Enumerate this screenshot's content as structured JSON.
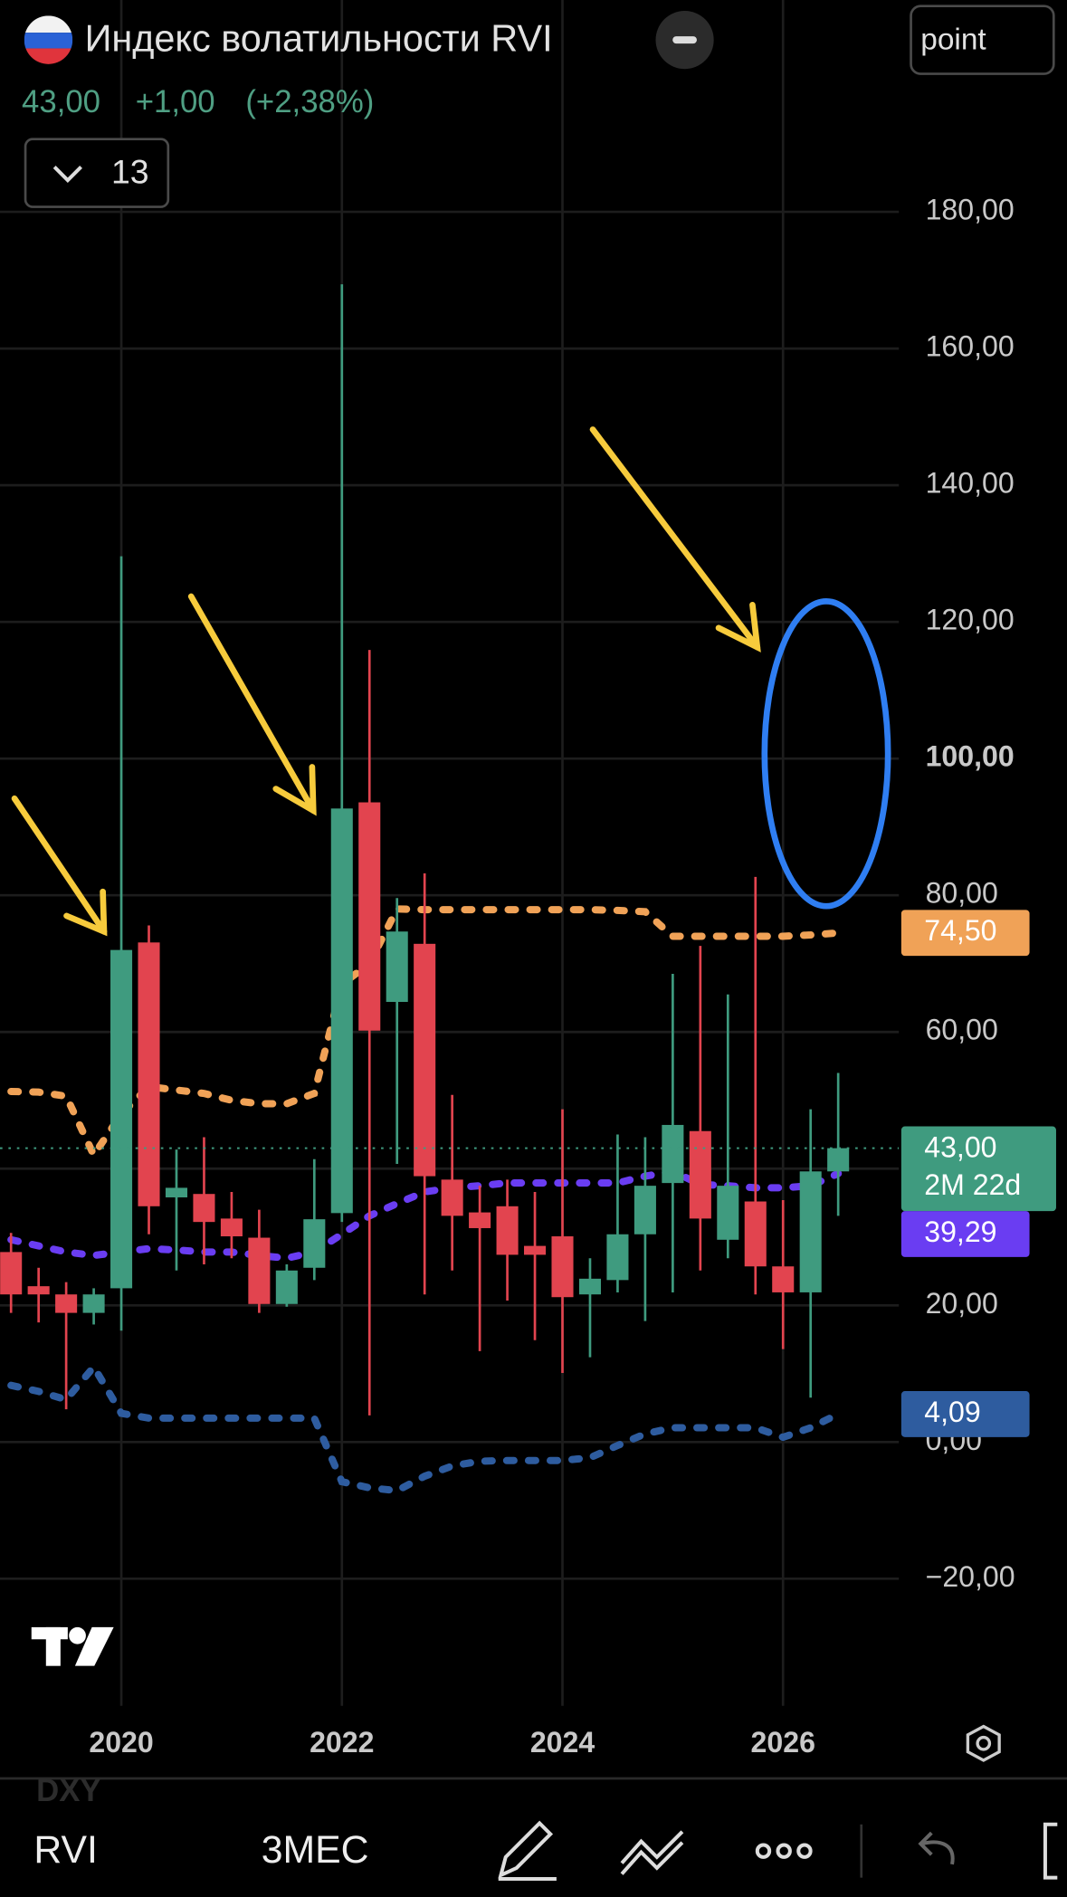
{
  "ui": {
    "symbol_button": "point",
    "interval_dropdown": "13",
    "watermark": "DXY",
    "toolbar": {
      "symbol": "RVI",
      "interval": "3МЕС"
    }
  },
  "chart_data": {
    "type": "candlestick",
    "title": "Индекс волатильности RVI",
    "quote": {
      "last": "43,00",
      "change": "+1,00",
      "change_percent": "(+2,38%)"
    },
    "x": [
      2019,
      2019.25,
      2019.5,
      2019.75,
      2020,
      2020.25,
      2020.5,
      2020.75,
      2021,
      2021.25,
      2021.5,
      2021.75,
      2022,
      2022.25,
      2022.5,
      2022.75,
      2023,
      2023.25,
      2023.5,
      2023.75,
      2024,
      2024.25,
      2024.5,
      2024.75,
      2025,
      2025.25,
      2025.5,
      2025.75,
      2026,
      2026.25,
      2026.5
    ],
    "candles": {
      "up_color": "#3f9b7f",
      "down_color": "#e2444f",
      "open": [
        27.8,
        22.8,
        21.6,
        18.9,
        22.5,
        73.1,
        35.8,
        36.3,
        32.7,
        29.9,
        20.2,
        25.5,
        33.5,
        93.6,
        64.4,
        72.9,
        38.4,
        33.6,
        34.5,
        28.7,
        30.1,
        21.6,
        23.7,
        30.4,
        37.9,
        45.5,
        29.6,
        35.2,
        25.7,
        21.9,
        39.6
      ],
      "high": [
        30.6,
        25.5,
        23.4,
        22.5,
        129.6,
        75.6,
        42.8,
        44.6,
        36.6,
        34.0,
        26.0,
        41.4,
        169.4,
        115.9,
        79.6,
        83.2,
        50.8,
        37.5,
        38.4,
        36.6,
        48.7,
        26.9,
        45.0,
        44.6,
        68.5,
        72.6,
        65.5,
        82.7,
        35.4,
        48.7,
        54.0
      ],
      "low": [
        18.9,
        17.5,
        4.8,
        17.2,
        16.3,
        30.4,
        25.1,
        26.0,
        26.9,
        18.9,
        19.8,
        23.7,
        32.2,
        3.9,
        40.7,
        21.6,
        25.1,
        13.3,
        20.7,
        14.9,
        10.1,
        12.4,
        21.9,
        17.7,
        21.9,
        25.1,
        26.9,
        21.6,
        13.6,
        6.5,
        33.1
      ],
      "close": [
        21.6,
        21.6,
        18.9,
        21.6,
        72.0,
        34.5,
        37.2,
        32.2,
        30.1,
        20.2,
        25.1,
        32.6,
        92.7,
        60.2,
        74.7,
        38.9,
        33.1,
        31.3,
        27.4,
        27.4,
        21.2,
        23.9,
        30.4,
        37.5,
        46.4,
        32.7,
        37.5,
        25.7,
        21.9,
        39.6,
        43.0
      ],
      "last_value_label": "43,00",
      "countdown": "2M 22d"
    },
    "lines": [
      {
        "color": "#f0a257",
        "values": [
          51.3,
          51.2,
          50.6,
          42.0,
          48.0,
          52.0,
          51.5,
          51.0,
          50.0,
          49.5,
          49.5,
          51.0,
          67.0,
          70.0,
          78.0,
          77.9,
          77.9,
          77.9,
          77.9,
          77.9,
          77.9,
          77.9,
          77.8,
          77.6,
          74.0,
          74.0,
          74.0,
          74.0,
          74.0,
          74.2,
          74.5
        ],
        "last_value_label": "74,50"
      },
      {
        "color": "#6a3df2",
        "values": [
          29.6,
          28.7,
          27.8,
          27.3,
          27.8,
          28.3,
          28.1,
          27.8,
          27.8,
          27.3,
          26.9,
          27.8,
          30.4,
          33.1,
          34.9,
          36.6,
          37.2,
          37.5,
          37.9,
          37.9,
          37.9,
          37.9,
          37.9,
          38.9,
          39.6,
          37.7,
          37.5,
          37.2,
          37.2,
          37.5,
          39.29
        ],
        "last_value_label": "39,29"
      },
      {
        "color": "#2e5c9f",
        "values": [
          8.3,
          7.4,
          6.2,
          11.0,
          4.2,
          3.5,
          3.5,
          3.5,
          3.5,
          3.5,
          3.5,
          3.5,
          -5.8,
          -6.7,
          -7.1,
          -5.0,
          -3.5,
          -2.8,
          -2.7,
          -2.7,
          -2.7,
          -2.3,
          -0.5,
          1.2,
          2.1,
          2.1,
          2.1,
          2.1,
          0.7,
          2.1,
          4.09
        ],
        "last_value_label": "4,09"
      }
    ],
    "xlim": [
      2018.9,
      2027.05
    ],
    "xticks": [
      2020,
      2022,
      2024,
      2026
    ],
    "ylim": [
      -38.6,
      211
    ],
    "yticks": [
      {
        "value": -20,
        "label": "−20,00"
      },
      {
        "value": 0,
        "label": "0,00"
      },
      {
        "value": 20,
        "label": "20,00"
      },
      {
        "value": 40,
        "label": "40,00"
      },
      {
        "value": 60,
        "label": "60,00"
      },
      {
        "value": 80,
        "label": "80,00"
      },
      {
        "value": 100,
        "label": "100,00"
      },
      {
        "value": 120,
        "label": "120,00"
      },
      {
        "value": 140,
        "label": "140,00"
      },
      {
        "value": 160,
        "label": "160,00"
      },
      {
        "value": 180,
        "label": "180,00"
      }
    ],
    "bold_ytick": 100,
    "grid": true
  }
}
